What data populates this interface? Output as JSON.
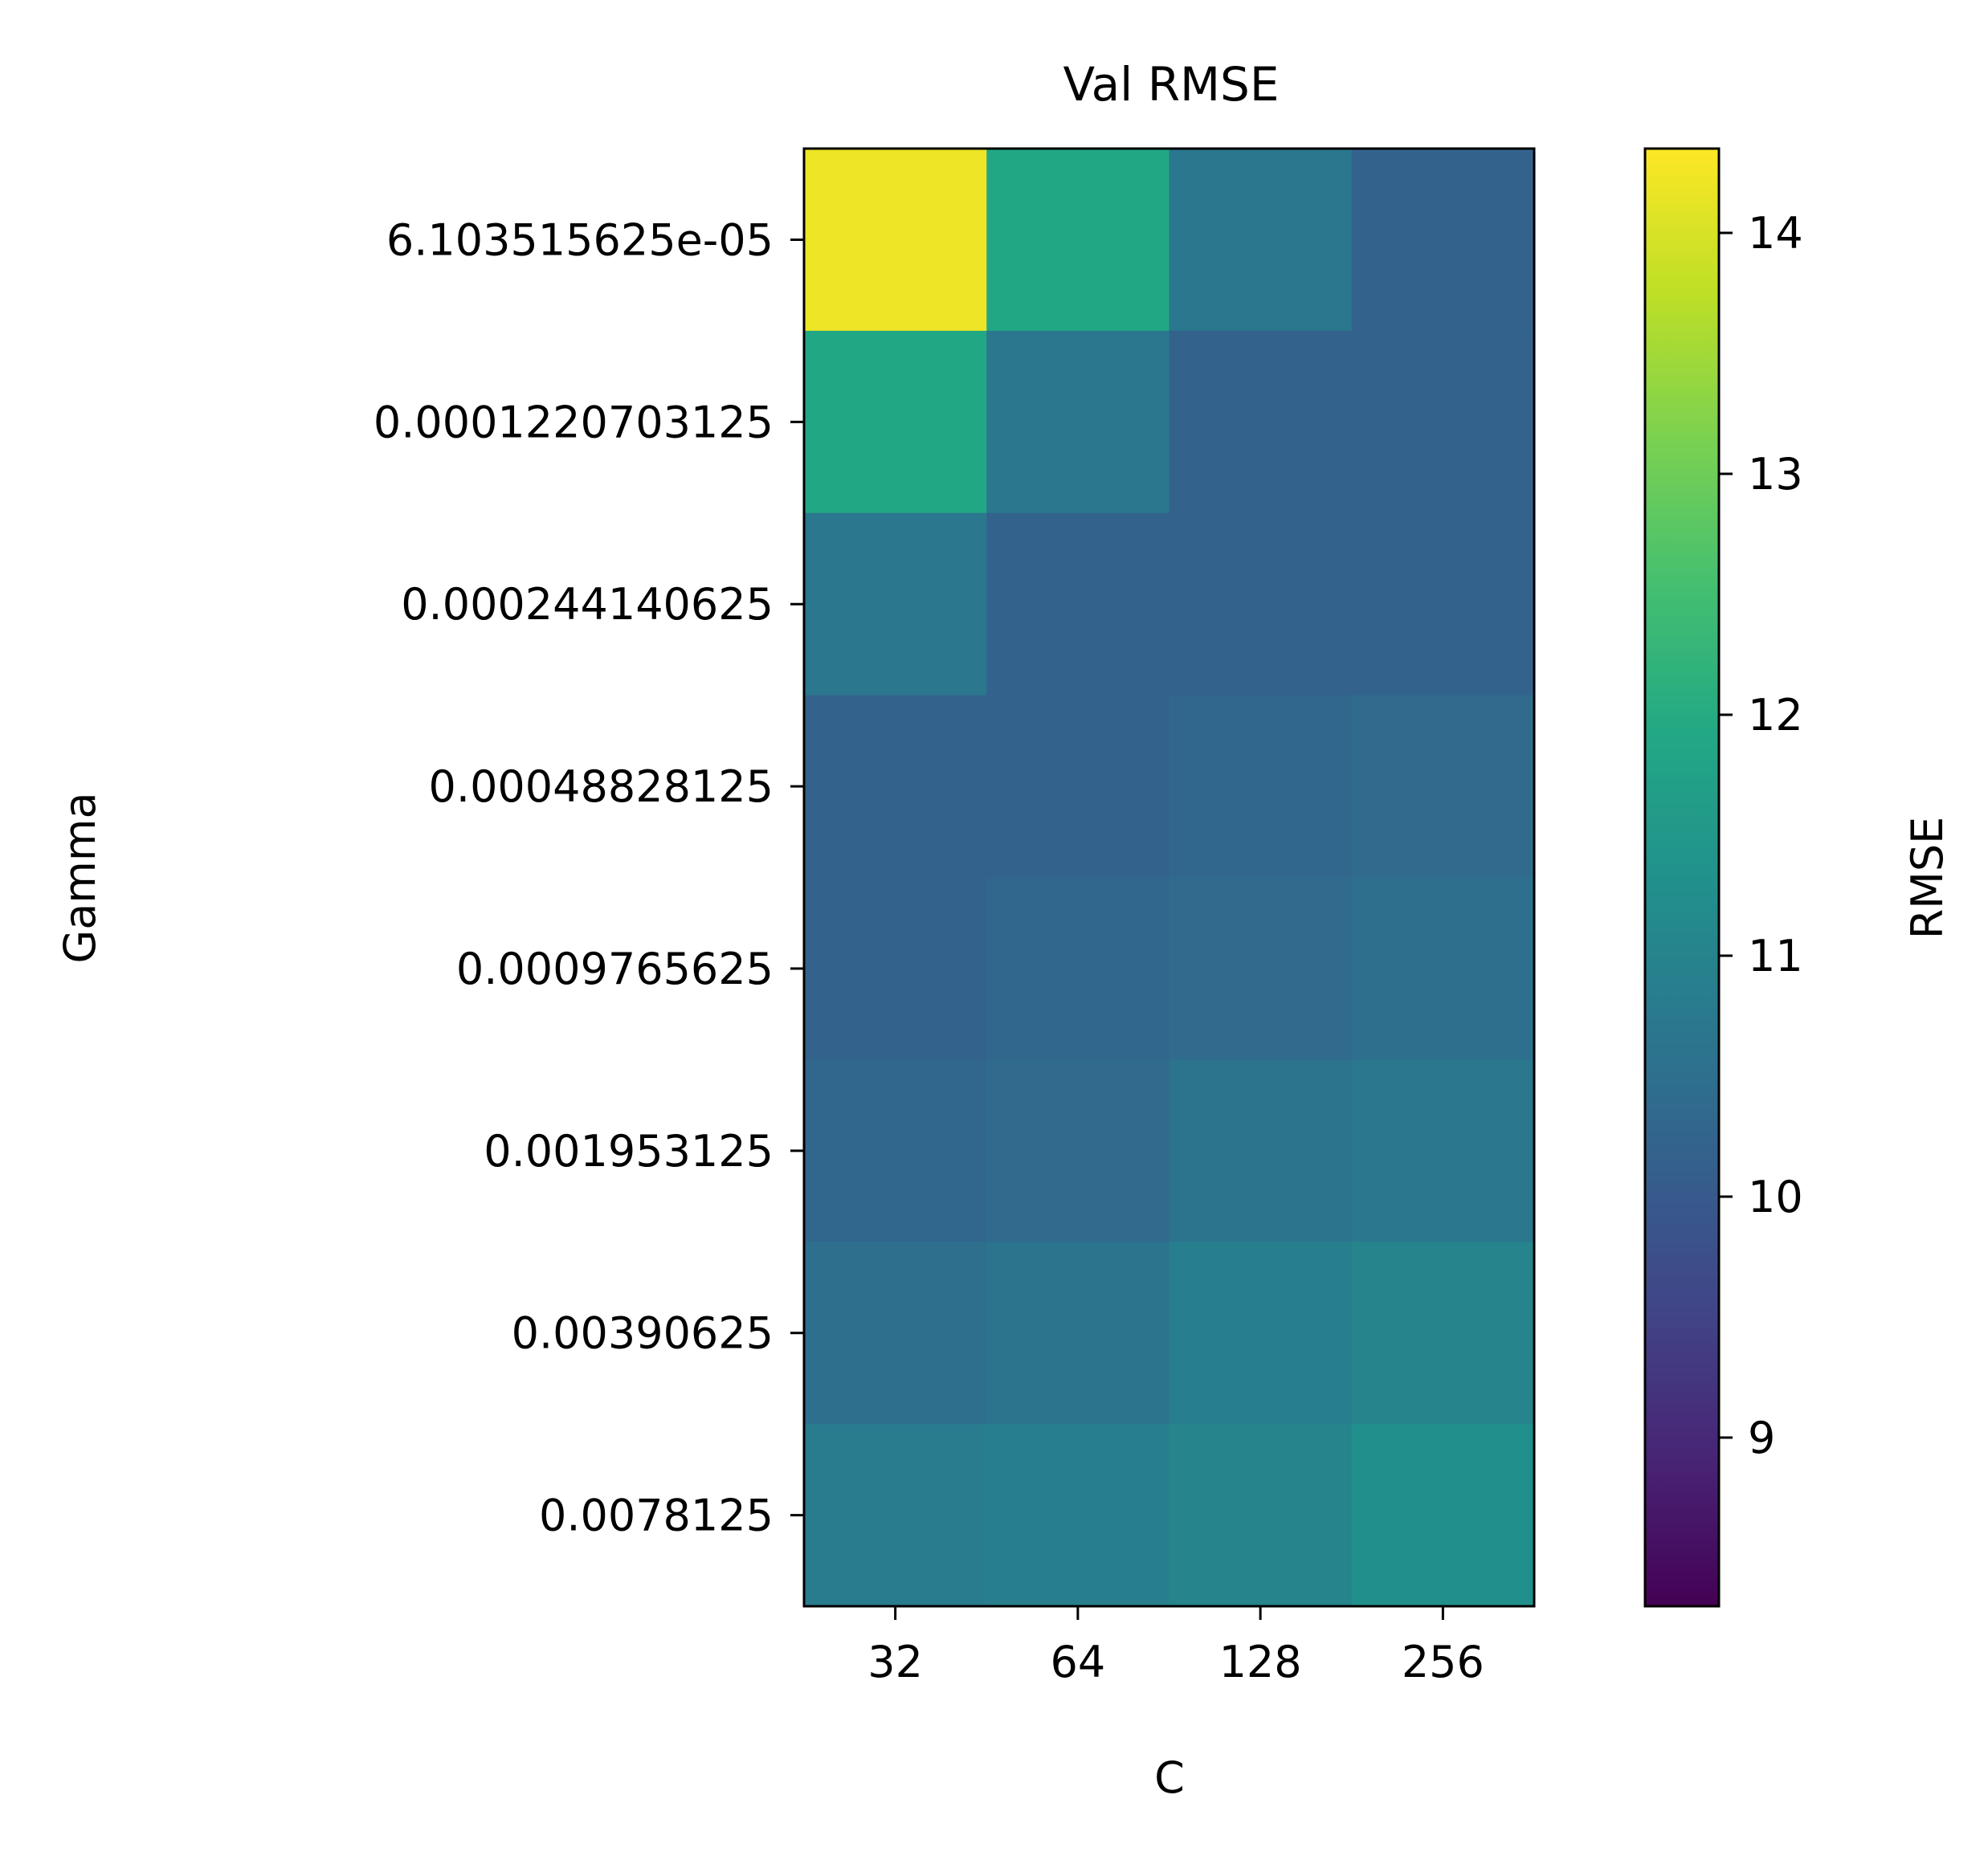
{
  "chart_data": {
    "type": "heatmap",
    "title": "Val RMSE",
    "xlabel": "C",
    "ylabel": "Gamma",
    "colorbar_label": "RMSE",
    "colormap": "viridis",
    "x_categories": [
      "32",
      "64",
      "128",
      "256"
    ],
    "y_categories": [
      "6.103515625e-05",
      "0.0001220703125",
      "0.000244140625",
      "0.00048828125",
      "0.0009765625",
      "0.001953125",
      "0.00390625",
      "0.0078125"
    ],
    "values": [
      [
        14.2,
        11.9,
        10.7,
        10.2
      ],
      [
        11.9,
        10.7,
        10.2,
        10.2
      ],
      [
        10.7,
        10.2,
        10.2,
        10.2
      ],
      [
        10.2,
        10.2,
        10.3,
        10.4
      ],
      [
        10.2,
        10.3,
        10.4,
        10.5
      ],
      [
        10.3,
        10.4,
        10.6,
        10.7
      ],
      [
        10.5,
        10.6,
        10.9,
        11.0
      ],
      [
        10.8,
        10.9,
        11.0,
        11.3
      ]
    ],
    "vmin": 8.3,
    "vmax": 14.35,
    "colorbar_ticks": [
      "9",
      "10",
      "11",
      "12",
      "13",
      "14"
    ],
    "grid": false
  }
}
